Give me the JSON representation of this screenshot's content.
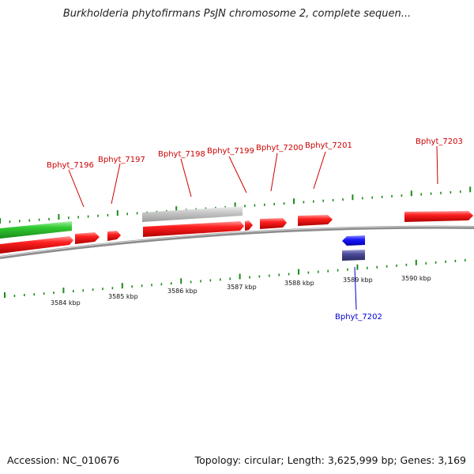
{
  "title": "Burkholderia phytofirmans PsJN chromosome 2, complete sequen...",
  "footer": {
    "accession": "Accession: NC_010676",
    "summary": "Topology: circular; Length: 3,625,999 bp; Genes: 3,169"
  },
  "colors": {
    "forward_gene": "#ff1a1a",
    "pseudo_gene": "#c8c8c8",
    "rna_gene": "#33cc33",
    "reverse_gene": "#1a1aff",
    "reverse_cds": "#4a4a99",
    "backbone": "#888888",
    "tick": "#1a8a1a",
    "label_forward": "#cc0000",
    "label_reverse": "#0000cc"
  },
  "axis_labels": [
    "3584 kbp",
    "3585 kbp",
    "3586 kbp",
    "3587 kbp",
    "3588 kbp",
    "3589 kbp",
    "3590 kbp"
  ],
  "genes": [
    {
      "label": "Bphyt_7196",
      "strand": "forward"
    },
    {
      "label": "Bphyt_7197",
      "strand": "forward"
    },
    {
      "label": "Bphyt_7198",
      "strand": "forward"
    },
    {
      "label": "Bphyt_7199",
      "strand": "forward"
    },
    {
      "label": "Bphyt_7200",
      "strand": "forward"
    },
    {
      "label": "Bphyt_7201",
      "strand": "forward"
    },
    {
      "label": "Bphyt_7203",
      "strand": "forward"
    },
    {
      "label": "Bphyt_7202",
      "strand": "reverse"
    }
  ]
}
